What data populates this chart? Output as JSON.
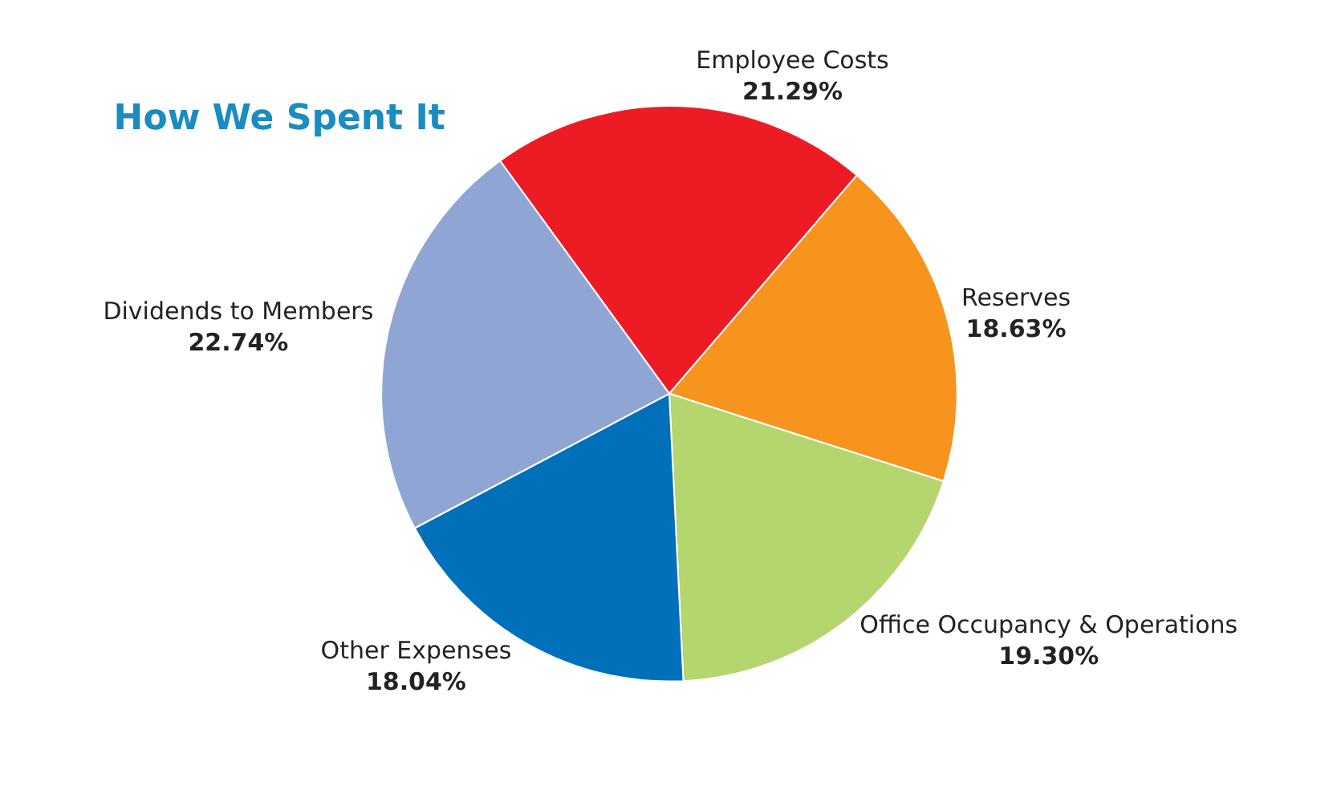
{
  "chart_data": {
    "type": "pie",
    "title": "How We Spent It",
    "categories": [
      "Employee Costs",
      "Reserves",
      "Office Occupancy & Operations",
      "Other Expenses",
      "Dividends to Members"
    ],
    "values": [
      21.29,
      18.63,
      19.3,
      18.04,
      22.74
    ],
    "value_labels": [
      "21.29%",
      "18.63%",
      "19.30%",
      "18.04%",
      "22.74%"
    ],
    "colors": [
      "#ed1c24",
      "#f7941d",
      "#b5d56f",
      "#0070bb",
      "#8fa6d4"
    ]
  }
}
